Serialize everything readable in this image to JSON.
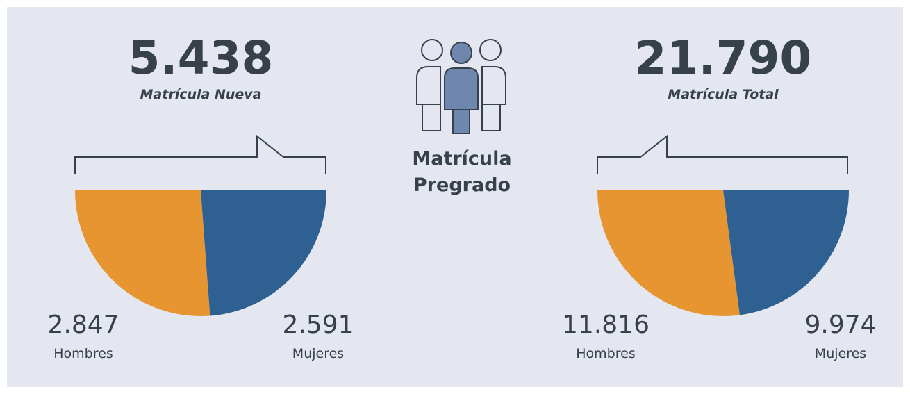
{
  "header": {
    "title": "Matrícula Pregrado"
  },
  "chart_data": [
    {
      "type": "pie",
      "title": "5.438",
      "subtitle": "Matrícula Nueva",
      "categories": [
        "Hombres",
        "Mujeres"
      ],
      "values": [
        2847,
        2591
      ],
      "value_labels": [
        "2.847",
        "2.591"
      ],
      "colors": [
        "#e69530",
        "#2e6191"
      ]
    },
    {
      "type": "pie",
      "title": "21.790",
      "subtitle": "Matrícula Total",
      "categories": [
        "Hombres",
        "Mujeres"
      ],
      "values": [
        11816,
        9974
      ],
      "value_labels": [
        "11.816",
        "9.974"
      ],
      "colors": [
        "#e69530",
        "#2e6191"
      ]
    }
  ]
}
